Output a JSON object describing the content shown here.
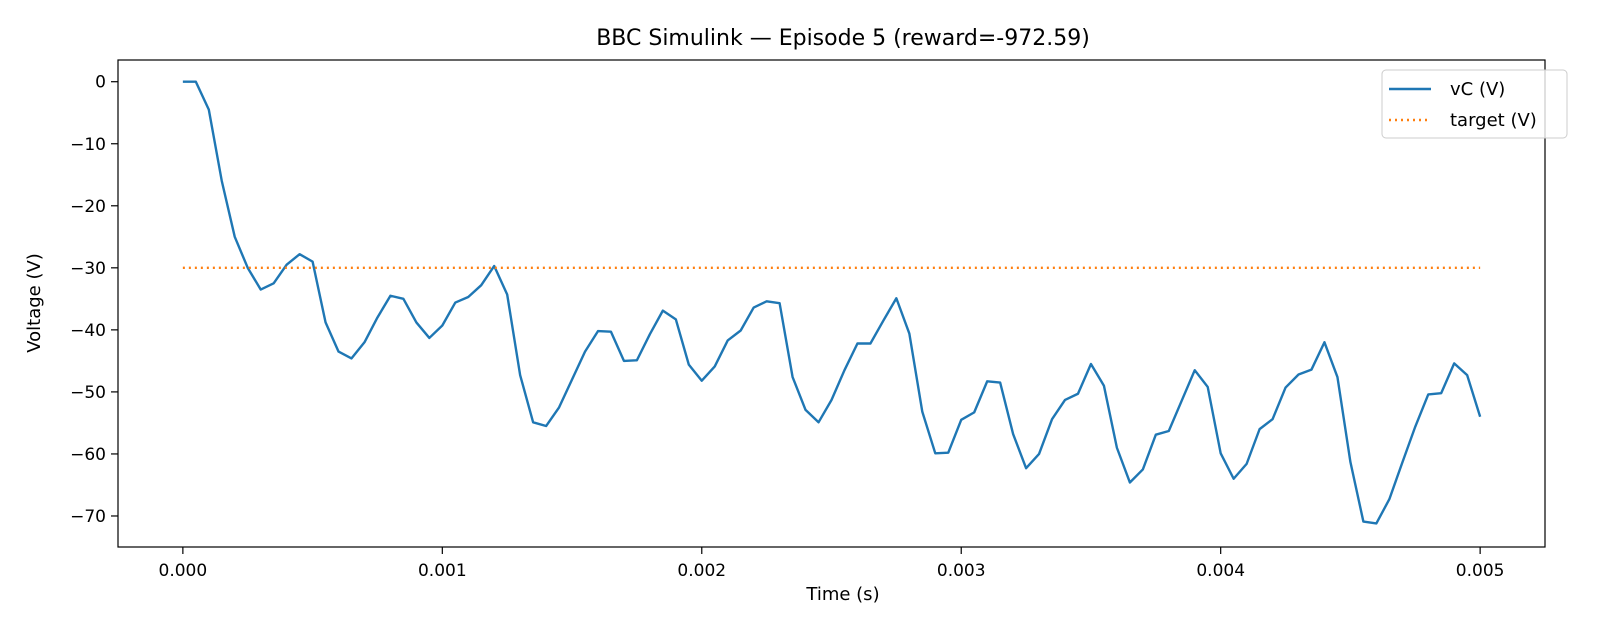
{
  "chart_data": {
    "type": "line",
    "title": "BBC Simulink — Episode 5 (reward=-972.59)",
    "xlabel": "Time (s)",
    "ylabel": "Voltage (V)",
    "xlim": [
      -0.00025,
      0.00525
    ],
    "ylim": [
      -75,
      3.5
    ],
    "xticks": [
      {
        "value": 0.0,
        "label": "0.000"
      },
      {
        "value": 0.001,
        "label": "0.001"
      },
      {
        "value": 0.002,
        "label": "0.002"
      },
      {
        "value": 0.003,
        "label": "0.003"
      },
      {
        "value": 0.004,
        "label": "0.004"
      },
      {
        "value": 0.005,
        "label": "0.005"
      }
    ],
    "yticks": [
      {
        "value": 0,
        "label": "0"
      },
      {
        "value": -10,
        "label": "−10"
      },
      {
        "value": -20,
        "label": "−20"
      },
      {
        "value": -30,
        "label": "−30"
      },
      {
        "value": -40,
        "label": "−40"
      },
      {
        "value": -50,
        "label": "−50"
      },
      {
        "value": -60,
        "label": "−60"
      },
      {
        "value": -70,
        "label": "−70"
      }
    ],
    "grid": false,
    "legend": "top-right",
    "series": [
      {
        "name": "vC (V)",
        "color": "#1f77b4",
        "style": "solid",
        "x": [
          0.0,
          5e-05,
          0.0001,
          0.00015,
          0.0002,
          0.00025,
          0.0003,
          0.00035,
          0.0004,
          0.00045,
          0.0005,
          0.00055,
          0.0006,
          0.00065,
          0.0007,
          0.00075,
          0.0008,
          0.00085,
          0.0009,
          0.00095,
          0.001,
          0.00105,
          0.0011,
          0.00115,
          0.0012,
          0.00125,
          0.0013,
          0.00135,
          0.0014,
          0.00145,
          0.0015,
          0.00155,
          0.0016,
          0.00165,
          0.0017,
          0.00175,
          0.0018,
          0.00185,
          0.0019,
          0.00195,
          0.002,
          0.00205,
          0.0021,
          0.00215,
          0.0022,
          0.00225,
          0.0023,
          0.00235,
          0.0024,
          0.00245,
          0.0025,
          0.00255,
          0.0026,
          0.00265,
          0.0027,
          0.00275,
          0.0028,
          0.00285,
          0.0029,
          0.00295,
          0.003,
          0.00305,
          0.0031,
          0.00315,
          0.0032,
          0.00325,
          0.0033,
          0.00335,
          0.0034,
          0.00345,
          0.0035,
          0.00355,
          0.0036,
          0.00365,
          0.0037,
          0.00375,
          0.0038,
          0.00385,
          0.0039,
          0.00395,
          0.004,
          0.00405,
          0.0041,
          0.00415,
          0.0042,
          0.00425,
          0.0043,
          0.00435,
          0.0044,
          0.00445,
          0.0045,
          0.00455,
          0.0046,
          0.00465,
          0.0047,
          0.00475,
          0.0048,
          0.00485,
          0.0049,
          0.00495,
          0.005
        ],
        "y": [
          0,
          0,
          -4.5,
          -16,
          -25,
          -30,
          -33.5,
          -32.5,
          -29.5,
          -27.8,
          -29,
          -38.8,
          -43.5,
          -44.6,
          -42,
          -38,
          -34.5,
          -35,
          -38.8,
          -41.3,
          -39.3,
          -35.6,
          -34.7,
          -32.8,
          -29.7,
          -34.3,
          -47.3,
          -54.9,
          -55.5,
          -52.5,
          -48,
          -43.5,
          -40.2,
          -40.3,
          -45,
          -44.9,
          -40.7,
          -36.9,
          -38.3,
          -45.6,
          -48.2,
          -45.9,
          -41.7,
          -40.1,
          -36.4,
          -35.4,
          -35.7,
          -47.6,
          -52.9,
          -54.9,
          -51.3,
          -46.5,
          -42.2,
          -42.2,
          -38.5,
          -34.9,
          -40.6,
          -53.2,
          -59.9,
          -59.8,
          -54.5,
          -53.3,
          -48.3,
          -48.5,
          -56.8,
          -62.3,
          -60,
          -54.4,
          -51.3,
          -50.3,
          -45.5,
          -49,
          -59,
          -64.6,
          -62.5,
          -56.9,
          -56.3,
          -51.4,
          -46.5,
          -49.2,
          -59.9,
          -64,
          -61.6,
          -56,
          -54.4,
          -49.3,
          -47.2,
          -46.4,
          -42,
          -47.6,
          -61.3,
          -70.9,
          -71.2,
          -67.3,
          -61.4,
          -55.6,
          -50.4,
          -50.2,
          -45.4,
          -47.3,
          -54
        ]
      },
      {
        "name": "target (V)",
        "color": "#ff7f0e",
        "style": "dotted",
        "x": [
          0.0,
          0.005
        ],
        "y": [
          -30,
          -30
        ]
      }
    ]
  }
}
